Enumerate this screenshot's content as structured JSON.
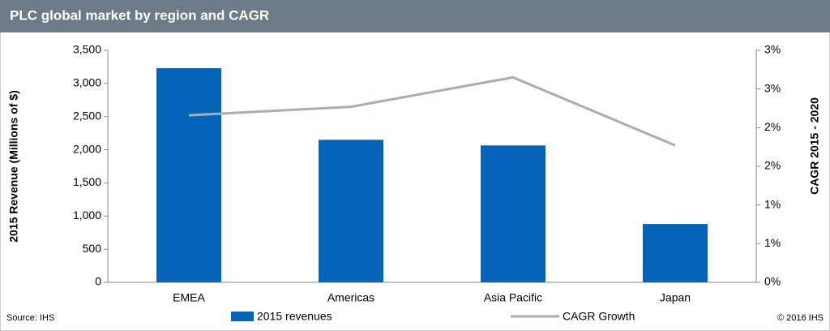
{
  "chart_data": {
    "type": "bar",
    "title": "PLC global market by region and CAGR",
    "y_label": "2015 Revenue (Millions of $)",
    "y2_label": "CAGR 2015 - 2020",
    "source": "Source: IHS",
    "copyright": "© 2016 IHS",
    "categories": [
      "EMEA",
      "Americas",
      "Asia Pacific",
      "Japan"
    ],
    "series": [
      {
        "name": "2015 revenues",
        "type": "bar",
        "color": "#0563b8",
        "values": [
          3230,
          2150,
          2065,
          880
        ]
      },
      {
        "name": "CAGR Growth",
        "type": "line",
        "axis": "y2",
        "color": "#a6aeb5",
        "values": [
          2.16,
          2.27,
          2.65,
          1.77
        ]
      }
    ],
    "ylim": [
      0,
      3500
    ],
    "yticks": [
      0,
      500,
      {
        "value": 1000,
        "label": "1,000"
      },
      {
        "value": 1500,
        "label": "1,500"
      },
      {
        "value": 2000,
        "label": "2,000"
      },
      {
        "value": 2500,
        "label": "2,500"
      },
      {
        "value": 3000,
        "label": "3,000"
      },
      {
        "value": 3500,
        "label": "3,500"
      }
    ],
    "y2lim": [
      0,
      3
    ],
    "y2ticks": [
      {
        "value": 0,
        "label": "0%"
      },
      {
        "value": 0.5,
        "label": "1%"
      },
      {
        "value": 1,
        "label": "1%"
      },
      {
        "value": 1.5,
        "label": "2%"
      },
      {
        "value": 2,
        "label": "2%"
      },
      {
        "value": 2.5,
        "label": "3%"
      },
      {
        "value": 3,
        "label": "3%"
      }
    ],
    "grid": false
  }
}
